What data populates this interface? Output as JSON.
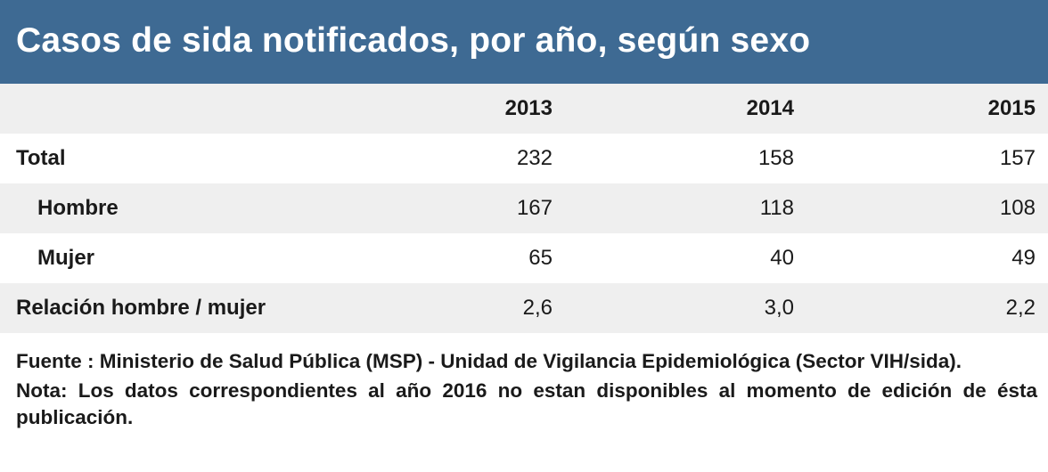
{
  "title": "Casos de sida notificados, por año, según sexo",
  "table": {
    "columns": [
      "2013",
      "2014",
      "2015"
    ],
    "rows": [
      {
        "label": "Total",
        "values": [
          "232",
          "158",
          "157"
        ]
      },
      {
        "label": "Hombre",
        "values": [
          "167",
          "118",
          "108"
        ]
      },
      {
        "label": "Mujer",
        "values": [
          "65",
          "40",
          "49"
        ]
      },
      {
        "label": "Relación hombre / mujer",
        "values": [
          "2,6",
          "3,0",
          "2,2"
        ]
      }
    ]
  },
  "footnotes": {
    "source": "Fuente : Ministerio de Salud Pública (MSP) - Unidad de Vigilancia Epidemiológica (Sector VIH/sida).",
    "note": "Nota: Los datos correspondientes al año 2016 no estan disponibles al momento de edición de ésta publicación."
  },
  "colors": {
    "title_background": "#3e6a93",
    "title_text": "#ffffff",
    "shaded_row": "#efefef"
  }
}
